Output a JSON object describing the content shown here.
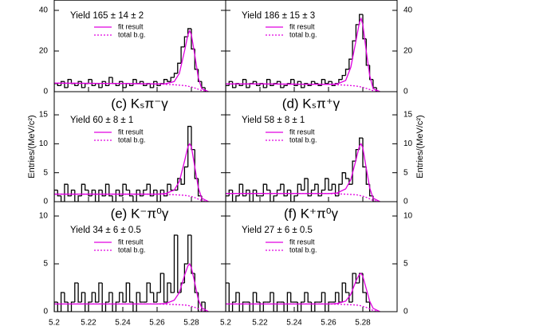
{
  "chart_data": [
    {
      "type": "histogram",
      "annotation": "Yield 165 ± 14 ± 2",
      "color": "#000000",
      "bins": [
        5.2,
        5.202,
        5.204,
        5.206,
        5.208,
        5.21,
        5.212,
        5.214,
        5.216,
        5.218,
        5.22,
        5.222,
        5.224,
        5.226,
        5.228,
        5.23,
        5.232,
        5.234,
        5.236,
        5.238,
        5.24,
        5.242,
        5.244,
        5.246,
        5.248,
        5.25,
        5.252,
        5.254,
        5.256,
        5.258,
        5.26,
        5.262,
        5.264,
        5.266,
        5.268,
        5.27,
        5.272,
        5.274,
        5.276,
        5.278,
        5.28,
        5.282,
        5.284,
        5.286,
        5.288,
        5.29
      ],
      "values": [
        4,
        3,
        5,
        2,
        6,
        4,
        3,
        5,
        2,
        4,
        6,
        3,
        4,
        2,
        5,
        3,
        7,
        4,
        3,
        5,
        2,
        4,
        3,
        6,
        4,
        5,
        3,
        4,
        2,
        5,
        3,
        4,
        6,
        5,
        7,
        9,
        14,
        22,
        27,
        31,
        21,
        11,
        5,
        2,
        0
      ],
      "series": [
        {
          "name": "fit result",
          "color": "#e000e0",
          "style": "solid",
          "x": [
            5.2,
            5.22,
            5.24,
            5.26,
            5.265,
            5.27,
            5.273,
            5.276,
            5.278,
            5.279,
            5.28,
            5.282,
            5.284,
            5.286,
            5.29
          ],
          "values": [
            4.2,
            4.1,
            4.0,
            3.8,
            3.9,
            5,
            9,
            20,
            28,
            30,
            28,
            18,
            7,
            1.5,
            0
          ]
        },
        {
          "name": "total b.g.",
          "color": "#e000e0",
          "style": "dotted",
          "x": [
            5.2,
            5.22,
            5.24,
            5.26,
            5.265,
            5.27,
            5.273,
            5.276,
            5.278,
            5.279,
            5.28,
            5.282,
            5.284,
            5.286,
            5.29
          ],
          "values": [
            4.2,
            4.1,
            4.0,
            3.8,
            3.6,
            3.4,
            3.2,
            3.0,
            2.7,
            2.5,
            2.3,
            1.8,
            1.2,
            0.6,
            0
          ]
        }
      ],
      "xlim": [
        5.2,
        5.3
      ],
      "xticks": [
        5.2,
        5.22,
        5.24,
        5.26,
        5.28
      ],
      "ylim": [
        0,
        45
      ],
      "yticks": [
        0,
        20,
        40
      ]
    },
    {
      "type": "histogram",
      "annotation": "Yield 186 ± 15 ± 3",
      "color": "#000000",
      "bins": [
        5.2,
        5.202,
        5.204,
        5.206,
        5.208,
        5.21,
        5.212,
        5.214,
        5.216,
        5.218,
        5.22,
        5.222,
        5.224,
        5.226,
        5.228,
        5.23,
        5.232,
        5.234,
        5.236,
        5.238,
        5.24,
        5.242,
        5.244,
        5.246,
        5.248,
        5.25,
        5.252,
        5.254,
        5.256,
        5.258,
        5.26,
        5.262,
        5.264,
        5.266,
        5.268,
        5.27,
        5.272,
        5.274,
        5.276,
        5.278,
        5.28,
        5.282,
        5.284,
        5.286,
        5.288,
        5.29
      ],
      "values": [
        3,
        5,
        2,
        4,
        3,
        6,
        2,
        4,
        5,
        3,
        4,
        2,
        6,
        3,
        4,
        5,
        2,
        3,
        4,
        6,
        3,
        5,
        2,
        4,
        3,
        5,
        4,
        3,
        6,
        4,
        5,
        3,
        4,
        6,
        8,
        11,
        16,
        25,
        33,
        38,
        26,
        13,
        6,
        2,
        0
      ],
      "series": [
        {
          "name": "fit result",
          "color": "#e000e0",
          "style": "solid",
          "x": [
            5.2,
            5.22,
            5.24,
            5.26,
            5.265,
            5.27,
            5.273,
            5.276,
            5.278,
            5.279,
            5.28,
            5.282,
            5.284,
            5.286,
            5.29
          ],
          "values": [
            3.8,
            3.8,
            3.7,
            3.6,
            3.8,
            5.5,
            12,
            25,
            34,
            36,
            33,
            20,
            8,
            1.5,
            0
          ]
        },
        {
          "name": "total b.g.",
          "color": "#e000e0",
          "style": "dotted",
          "x": [
            5.2,
            5.22,
            5.24,
            5.26,
            5.265,
            5.27,
            5.273,
            5.276,
            5.278,
            5.279,
            5.28,
            5.282,
            5.284,
            5.286,
            5.29
          ],
          "values": [
            3.8,
            3.8,
            3.7,
            3.6,
            3.4,
            3.2,
            3.0,
            2.8,
            2.5,
            2.3,
            2.1,
            1.6,
            1.1,
            0.5,
            0
          ]
        }
      ],
      "xlim": [
        5.2,
        5.3
      ],
      "xticks": [
        5.2,
        5.22,
        5.24,
        5.26,
        5.28
      ],
      "ylim": [
        0,
        45
      ],
      "yticks": [
        0,
        20,
        40
      ]
    },
    {
      "type": "histogram",
      "title": "(c) Kₛπ⁻γ",
      "annotation": "Yield 60 ± 8 ± 1",
      "ylabel": "Entries/(MeV/c²)",
      "color": "#000000",
      "bins": [
        5.2,
        5.202,
        5.204,
        5.206,
        5.208,
        5.21,
        5.212,
        5.214,
        5.216,
        5.218,
        5.22,
        5.222,
        5.224,
        5.226,
        5.228,
        5.23,
        5.232,
        5.234,
        5.236,
        5.238,
        5.24,
        5.242,
        5.244,
        5.246,
        5.248,
        5.25,
        5.252,
        5.254,
        5.256,
        5.258,
        5.26,
        5.262,
        5.264,
        5.266,
        5.268,
        5.27,
        5.272,
        5.274,
        5.276,
        5.278,
        5.28,
        5.282,
        5.284,
        5.286,
        5.288,
        5.29
      ],
      "values": [
        2,
        1,
        0,
        3,
        1,
        2,
        0,
        1,
        3,
        2,
        1,
        2,
        0,
        2,
        1,
        3,
        1,
        0,
        2,
        1,
        3,
        2,
        1,
        0,
        2,
        1,
        2,
        3,
        1,
        2,
        0,
        2,
        1,
        3,
        2,
        2,
        4,
        3,
        6,
        13,
        9,
        4,
        1,
        0,
        0
      ],
      "series": [
        {
          "name": "fit result",
          "color": "#e000e0",
          "style": "solid",
          "x": [
            5.2,
            5.22,
            5.24,
            5.26,
            5.265,
            5.27,
            5.273,
            5.276,
            5.278,
            5.279,
            5.28,
            5.282,
            5.284,
            5.286,
            5.29
          ],
          "values": [
            1.3,
            1.3,
            1.3,
            1.3,
            1.4,
            2,
            3.5,
            7,
            9.5,
            10,
            9.5,
            6,
            2.5,
            0.6,
            0
          ]
        },
        {
          "name": "total b.g.",
          "color": "#e000e0",
          "style": "dotted",
          "x": [
            5.2,
            5.22,
            5.24,
            5.26,
            5.265,
            5.27,
            5.273,
            5.276,
            5.278,
            5.279,
            5.28,
            5.282,
            5.284,
            5.286,
            5.29
          ],
          "values": [
            1.3,
            1.3,
            1.3,
            1.3,
            1.25,
            1.2,
            1.15,
            1.1,
            1.0,
            0.95,
            0.9,
            0.7,
            0.45,
            0.2,
            0
          ]
        }
      ],
      "xlim": [
        5.2,
        5.3
      ],
      "xticks": [
        5.2,
        5.22,
        5.24,
        5.26,
        5.28
      ],
      "ylim": [
        0,
        19
      ],
      "yticks": [
        0,
        5,
        10,
        15
      ]
    },
    {
      "type": "histogram",
      "title": "(d) Kₛπ⁺γ",
      "annotation": "Yield 58 ± 8 ± 1",
      "ylabel": "Entries/(MeV/c²)",
      "color": "#000000",
      "bins": [
        5.2,
        5.202,
        5.204,
        5.206,
        5.208,
        5.21,
        5.212,
        5.214,
        5.216,
        5.218,
        5.22,
        5.222,
        5.224,
        5.226,
        5.228,
        5.23,
        5.232,
        5.234,
        5.236,
        5.238,
        5.24,
        5.242,
        5.244,
        5.246,
        5.248,
        5.25,
        5.252,
        5.254,
        5.256,
        5.258,
        5.26,
        5.262,
        5.264,
        5.266,
        5.268,
        5.27,
        5.272,
        5.274,
        5.276,
        5.278,
        5.28,
        5.282,
        5.284,
        5.286,
        5.288,
        5.29
      ],
      "values": [
        1,
        2,
        0,
        1,
        3,
        1,
        2,
        0,
        2,
        1,
        1,
        3,
        2,
        0,
        1,
        2,
        3,
        1,
        2,
        0,
        1,
        3,
        2,
        4,
        1,
        2,
        3,
        1,
        2,
        4,
        2,
        3,
        1,
        3,
        5,
        4,
        3,
        7,
        9,
        11,
        6,
        3,
        1,
        0,
        0
      ],
      "series": [
        {
          "name": "fit result",
          "color": "#e000e0",
          "style": "solid",
          "x": [
            5.2,
            5.22,
            5.24,
            5.26,
            5.265,
            5.27,
            5.273,
            5.276,
            5.278,
            5.279,
            5.28,
            5.282,
            5.284,
            5.286,
            5.29
          ],
          "values": [
            1.4,
            1.4,
            1.4,
            1.4,
            1.5,
            2.2,
            3.8,
            7.2,
            9.6,
            10,
            9.3,
            5.8,
            2.4,
            0.6,
            0
          ]
        },
        {
          "name": "total b.g.",
          "color": "#e000e0",
          "style": "dotted",
          "x": [
            5.2,
            5.22,
            5.24,
            5.26,
            5.265,
            5.27,
            5.273,
            5.276,
            5.278,
            5.279,
            5.28,
            5.282,
            5.284,
            5.286,
            5.29
          ],
          "values": [
            1.4,
            1.4,
            1.4,
            1.4,
            1.35,
            1.3,
            1.25,
            1.2,
            1.1,
            1.0,
            0.95,
            0.75,
            0.5,
            0.2,
            0
          ]
        }
      ],
      "xlim": [
        5.2,
        5.3
      ],
      "xticks": [
        5.2,
        5.22,
        5.24,
        5.26,
        5.28
      ],
      "ylim": [
        0,
        19
      ],
      "yticks": [
        0,
        5,
        10,
        15
      ]
    },
    {
      "type": "histogram",
      "title": "(e) K⁻π⁰γ",
      "annotation": "Yield 34 ± 6 ± 0.5",
      "color": "#000000",
      "bins": [
        5.2,
        5.202,
        5.204,
        5.206,
        5.208,
        5.21,
        5.212,
        5.214,
        5.216,
        5.218,
        5.22,
        5.222,
        5.224,
        5.226,
        5.228,
        5.23,
        5.232,
        5.234,
        5.236,
        5.238,
        5.24,
        5.242,
        5.244,
        5.246,
        5.248,
        5.25,
        5.252,
        5.254,
        5.256,
        5.258,
        5.26,
        5.262,
        5.264,
        5.266,
        5.268,
        5.27,
        5.272,
        5.274,
        5.276,
        5.278,
        5.28,
        5.282,
        5.284,
        5.286,
        5.288,
        5.29
      ],
      "values": [
        1,
        0,
        2,
        1,
        0,
        1,
        3,
        1,
        2,
        0,
        1,
        2,
        1,
        3,
        0,
        1,
        2,
        0,
        1,
        2,
        1,
        3,
        1,
        0,
        2,
        1,
        1,
        3,
        2,
        1,
        2,
        4,
        1,
        3,
        2,
        8,
        2,
        3,
        5,
        8,
        4,
        2,
        0,
        1,
        0
      ],
      "series": [
        {
          "name": "fit result",
          "color": "#e000e0",
          "style": "solid",
          "x": [
            5.2,
            5.22,
            5.24,
            5.26,
            5.265,
            5.27,
            5.273,
            5.276,
            5.278,
            5.279,
            5.28,
            5.282,
            5.284,
            5.286,
            5.29
          ],
          "values": [
            0.8,
            0.8,
            0.8,
            0.8,
            0.85,
            1.2,
            2,
            3.8,
            4.8,
            5,
            4.6,
            3,
            1.3,
            0.4,
            0
          ]
        },
        {
          "name": "total b.g.",
          "color": "#e000e0",
          "style": "dotted",
          "x": [
            5.2,
            5.22,
            5.24,
            5.26,
            5.265,
            5.27,
            5.273,
            5.276,
            5.278,
            5.279,
            5.28,
            5.282,
            5.284,
            5.286,
            5.29
          ],
          "values": [
            0.8,
            0.8,
            0.8,
            0.8,
            0.78,
            0.75,
            0.72,
            0.7,
            0.65,
            0.6,
            0.55,
            0.45,
            0.3,
            0.12,
            0
          ]
        }
      ],
      "xlim": [
        5.2,
        5.3
      ],
      "xticks": [
        5.2,
        5.22,
        5.24,
        5.26,
        5.28
      ],
      "ylim": [
        0,
        11.5
      ],
      "yticks": [
        0,
        5,
        10
      ]
    },
    {
      "type": "histogram",
      "title": "(f) K⁺π⁰γ",
      "annotation": "Yield 27 ± 6 ± 0.5",
      "color": "#000000",
      "bins": [
        5.2,
        5.202,
        5.204,
        5.206,
        5.208,
        5.21,
        5.212,
        5.214,
        5.216,
        5.218,
        5.22,
        5.222,
        5.224,
        5.226,
        5.228,
        5.23,
        5.232,
        5.234,
        5.236,
        5.238,
        5.24,
        5.242,
        5.244,
        5.246,
        5.248,
        5.25,
        5.252,
        5.254,
        5.256,
        5.258,
        5.26,
        5.262,
        5.264,
        5.266,
        5.268,
        5.27,
        5.272,
        5.274,
        5.276,
        5.278,
        5.28,
        5.282,
        5.284,
        5.286,
        5.288,
        5.29
      ],
      "values": [
        3,
        0,
        1,
        2,
        0,
        1,
        1,
        0,
        2,
        1,
        0,
        1,
        1,
        2,
        0,
        1,
        1,
        0,
        2,
        1,
        1,
        0,
        1,
        2,
        1,
        0,
        1,
        1,
        2,
        0,
        1,
        1,
        2,
        1,
        3,
        2,
        1,
        4,
        3,
        4,
        2,
        1,
        0,
        0,
        0
      ],
      "series": [
        {
          "name": "fit result",
          "color": "#e000e0",
          "style": "solid",
          "x": [
            5.2,
            5.22,
            5.24,
            5.26,
            5.265,
            5.27,
            5.273,
            5.276,
            5.278,
            5.279,
            5.28,
            5.282,
            5.284,
            5.286,
            5.29
          ],
          "values": [
            0.8,
            0.8,
            0.8,
            0.8,
            0.85,
            1.1,
            1.8,
            3.2,
            3.9,
            4,
            3.7,
            2.4,
            1.1,
            0.35,
            0
          ]
        },
        {
          "name": "total b.g.",
          "color": "#e000e0",
          "style": "dotted",
          "x": [
            5.2,
            5.22,
            5.24,
            5.26,
            5.265,
            5.27,
            5.273,
            5.276,
            5.278,
            5.279,
            5.28,
            5.282,
            5.284,
            5.286,
            5.29
          ],
          "values": [
            0.8,
            0.8,
            0.8,
            0.8,
            0.78,
            0.75,
            0.72,
            0.7,
            0.65,
            0.6,
            0.55,
            0.45,
            0.3,
            0.12,
            0
          ]
        }
      ],
      "xlim": [
        5.2,
        5.3
      ],
      "xticks": [
        5.2,
        5.22,
        5.24,
        5.26,
        5.28
      ],
      "ylim": [
        0,
        11.5
      ],
      "yticks": [
        0,
        5,
        10
      ]
    }
  ]
}
